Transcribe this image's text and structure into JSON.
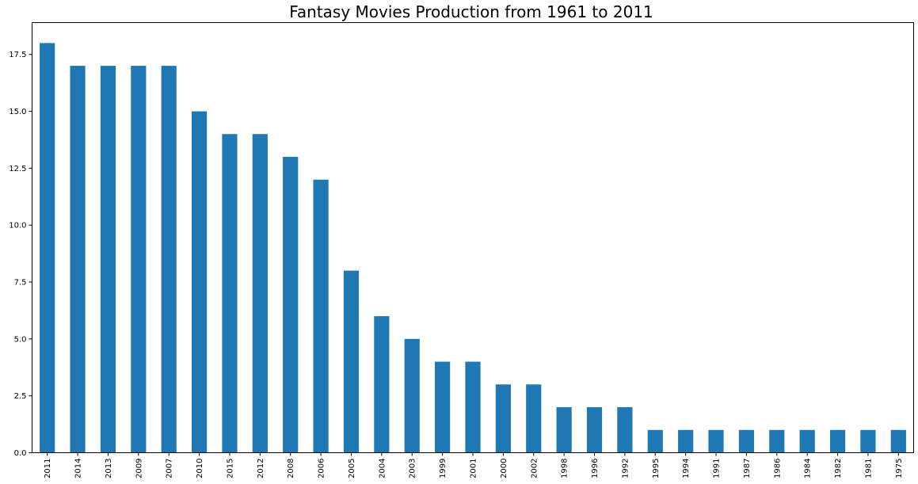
{
  "chart_data": {
    "type": "bar",
    "title": "Fantasy Movies Production from 1961 to 2011",
    "xlabel": "",
    "ylabel": "",
    "categories": [
      "2011",
      "2014",
      "2013",
      "2009",
      "2007",
      "2010",
      "2015",
      "2012",
      "2008",
      "2006",
      "2005",
      "2004",
      "2003",
      "1999",
      "2001",
      "2000",
      "2002",
      "1998",
      "1996",
      "1992",
      "1995",
      "1994",
      "1991",
      "1987",
      "1986",
      "1984",
      "1982",
      "1981",
      "1975"
    ],
    "values": [
      18,
      17,
      17,
      17,
      17,
      15,
      14,
      14,
      13,
      12,
      8,
      6,
      5,
      4,
      4,
      3,
      3,
      2,
      2,
      2,
      1,
      1,
      1,
      1,
      1,
      1,
      1,
      1,
      1
    ],
    "ylim": [
      0,
      18.9
    ],
    "yticks": [
      "0.0",
      "2.5",
      "5.0",
      "7.5",
      "10.0",
      "12.5",
      "15.0",
      "17.5"
    ],
    "bar_color": "#1f77b4",
    "grid": false,
    "legend": "none"
  }
}
